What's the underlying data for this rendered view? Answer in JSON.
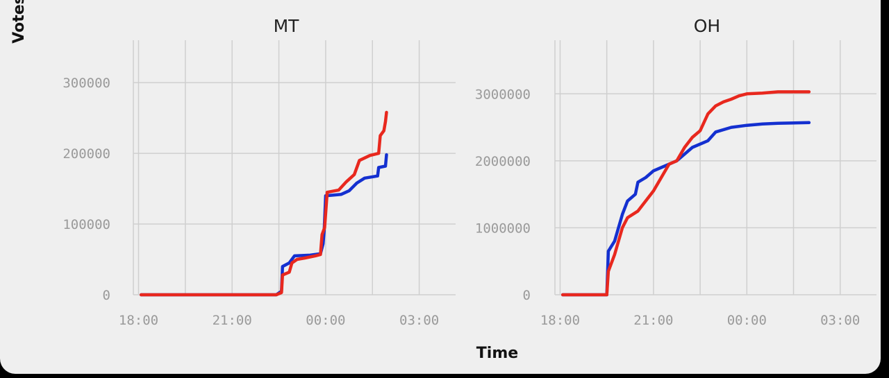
{
  "chart_data": {
    "type": "line",
    "xlabel": "Time",
    "ylabel": "Votes",
    "colors": {
      "blue_series": "#1430d0",
      "red_series": "#e8281e",
      "grid": "#cfcfcf",
      "tick": "#9a9a9a"
    },
    "grid": true,
    "legend": "none",
    "panels": [
      {
        "title": "MT",
        "xlim": [
          "17:50",
          "04:10"
        ],
        "xticks": [
          "18:00",
          "21:00",
          "00:00",
          "03:00"
        ],
        "ylim": [
          0,
          360000
        ],
        "yticks": [
          "0",
          "100000",
          "200000",
          "300000"
        ],
        "series": [
          {
            "color": "#1430d0",
            "points": [
              [
                "18:05",
                0
              ],
              [
                "22:25",
                0
              ],
              [
                "22:35",
                5000
              ],
              [
                "22:37",
                40000
              ],
              [
                "22:50",
                45000
              ],
              [
                "23:00",
                55000
              ],
              [
                "23:30",
                56000
              ],
              [
                "23:50",
                58000
              ],
              [
                "23:55",
                72000
              ],
              [
                "23:57",
                90000
              ],
              [
                "00:00",
                140000
              ],
              [
                "00:30",
                142000
              ],
              [
                "00:45",
                147000
              ],
              [
                "01:00",
                158000
              ],
              [
                "01:15",
                165000
              ],
              [
                "01:40",
                168000
              ],
              [
                "01:42",
                180000
              ],
              [
                "01:55",
                182000
              ],
              [
                "01:57",
                198000
              ]
            ]
          },
          {
            "color": "#e8281e",
            "points": [
              [
                "18:05",
                0
              ],
              [
                "22:25",
                0
              ],
              [
                "22:35",
                3000
              ],
              [
                "22:37",
                28000
              ],
              [
                "22:50",
                32000
              ],
              [
                "22:55",
                45000
              ],
              [
                "23:05",
                50000
              ],
              [
                "23:20",
                52000
              ],
              [
                "23:40",
                55000
              ],
              [
                "23:50",
                57000
              ],
              [
                "23:53",
                85000
              ],
              [
                "23:58",
                95000
              ],
              [
                "00:03",
                145000
              ],
              [
                "00:25",
                148000
              ],
              [
                "00:40",
                160000
              ],
              [
                "00:55",
                170000
              ],
              [
                "01:05",
                190000
              ],
              [
                "01:25",
                197000
              ],
              [
                "01:42",
                200000
              ],
              [
                "01:45",
                225000
              ],
              [
                "01:52",
                232000
              ],
              [
                "01:55",
                245000
              ],
              [
                "01:57",
                258000
              ]
            ]
          }
        ]
      },
      {
        "title": "OH",
        "xlim": [
          "17:50",
          "04:10"
        ],
        "xticks": [
          "18:00",
          "21:00",
          "00:00",
          "03:00"
        ],
        "ylim": [
          0,
          3800000
        ],
        "yticks": [
          "0",
          "1000000",
          "2000000",
          "3000000"
        ],
        "series": [
          {
            "color": "#1430d0",
            "points": [
              [
                "18:05",
                0
              ],
              [
                "19:30",
                0
              ],
              [
                "19:33",
                650000
              ],
              [
                "19:45",
                800000
              ],
              [
                "20:00",
                1200000
              ],
              [
                "20:10",
                1400000
              ],
              [
                "20:25",
                1500000
              ],
              [
                "20:30",
                1680000
              ],
              [
                "20:45",
                1750000
              ],
              [
                "21:00",
                1850000
              ],
              [
                "21:15",
                1900000
              ],
              [
                "21:30",
                1950000
              ],
              [
                "21:45",
                2000000
              ],
              [
                "22:00",
                2100000
              ],
              [
                "22:15",
                2200000
              ],
              [
                "22:45",
                2300000
              ],
              [
                "23:00",
                2430000
              ],
              [
                "23:30",
                2500000
              ],
              [
                "00:00",
                2530000
              ],
              [
                "00:30",
                2550000
              ],
              [
                "01:00",
                2560000
              ],
              [
                "02:00",
                2570000
              ]
            ]
          },
          {
            "color": "#e8281e",
            "points": [
              [
                "18:05",
                0
              ],
              [
                "19:30",
                0
              ],
              [
                "19:33",
                350000
              ],
              [
                "19:45",
                600000
              ],
              [
                "20:00",
                1000000
              ],
              [
                "20:10",
                1150000
              ],
              [
                "20:30",
                1250000
              ],
              [
                "20:45",
                1400000
              ],
              [
                "21:00",
                1550000
              ],
              [
                "21:15",
                1750000
              ],
              [
                "21:30",
                1950000
              ],
              [
                "21:45",
                2000000
              ],
              [
                "22:00",
                2200000
              ],
              [
                "22:15",
                2350000
              ],
              [
                "22:30",
                2450000
              ],
              [
                "22:45",
                2700000
              ],
              [
                "23:00",
                2820000
              ],
              [
                "23:15",
                2880000
              ],
              [
                "23:30",
                2920000
              ],
              [
                "23:45",
                2970000
              ],
              [
                "00:00",
                3000000
              ],
              [
                "00:30",
                3010000
              ],
              [
                "01:00",
                3030000
              ],
              [
                "02:00",
                3030000
              ]
            ]
          }
        ]
      }
    ]
  }
}
